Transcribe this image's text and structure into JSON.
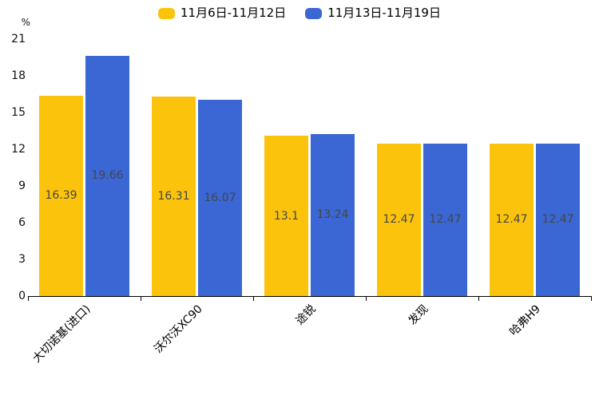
{
  "chart_data": {
    "type": "bar",
    "title": "",
    "unit_label": "%",
    "categories": [
      "大切诺基(进口)",
      "沃尔沃XC90",
      "途锐",
      "发现",
      "哈弗H9"
    ],
    "series": [
      {
        "name": "11月6日-11月12日",
        "color": "#FCC30D",
        "values": [
          16.39,
          16.31,
          13.1,
          12.47,
          12.47
        ],
        "labels": [
          "16.39",
          "16.31",
          "13.1",
          "12.47",
          "12.47"
        ]
      },
      {
        "name": "11月13日-11月19日",
        "color": "#3A67D3",
        "values": [
          19.66,
          16.07,
          13.24,
          12.47,
          12.47
        ],
        "labels": [
          "19.66",
          "16.07",
          "13.24",
          "12.47",
          "12.47"
        ]
      }
    ],
    "ylim": [
      0,
      21
    ],
    "yticks": [
      0,
      3,
      6,
      9,
      12,
      15,
      18,
      21
    ],
    "grid": false,
    "legend_position": "top",
    "value_label_color": "#464646",
    "axis_color": "#000000"
  }
}
